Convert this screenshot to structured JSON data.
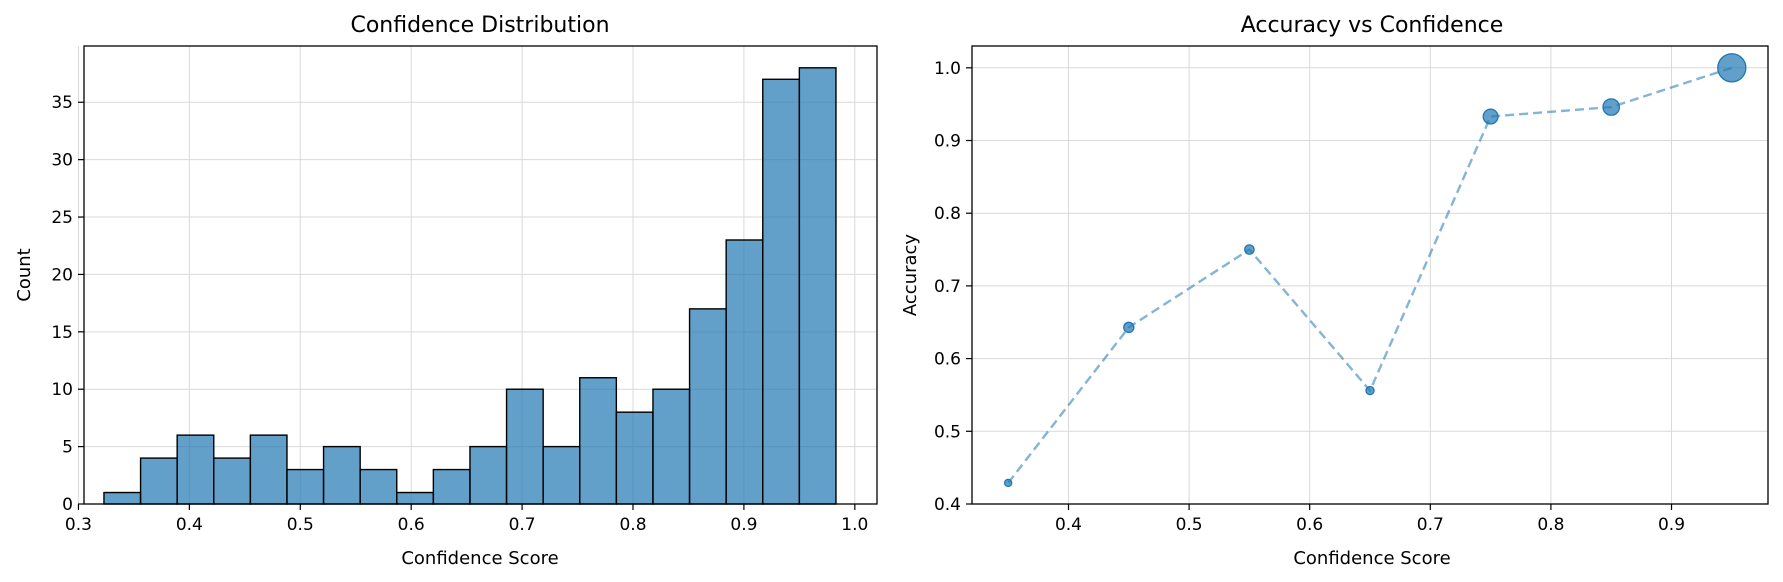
{
  "colors": {
    "bar_fill": "#1f77b4",
    "bar_edge": "#000000",
    "marker": "#1f77b4",
    "grid": "#d9d9d9"
  },
  "chart_data": [
    {
      "type": "bar",
      "title": "Confidence Distribution",
      "xlabel": "Confidence Score",
      "ylabel": "Count",
      "xlim": [
        0.305,
        1.02
      ],
      "ylim": [
        0,
        39.9
      ],
      "xticks": [
        0.3,
        0.4,
        0.5,
        0.6,
        0.7,
        0.8,
        0.9,
        1.0
      ],
      "xtick_labels": [
        "0.3",
        "0.4",
        "0.5",
        "0.6",
        "0.7",
        "0.8",
        "0.9",
        "1.0"
      ],
      "yticks": [
        0,
        5,
        10,
        15,
        20,
        25,
        30,
        35
      ],
      "ytick_labels": [
        "0",
        "5",
        "10",
        "15",
        "20",
        "25",
        "30",
        "35"
      ],
      "grid": true,
      "bin_edges": [
        0.323,
        0.356,
        0.389,
        0.422,
        0.455,
        0.488,
        0.521,
        0.554,
        0.587,
        0.62,
        0.653,
        0.686,
        0.719,
        0.752,
        0.785,
        0.818,
        0.851,
        0.884,
        0.917,
        0.95,
        0.983
      ],
      "counts": [
        1,
        4,
        6,
        4,
        6,
        3,
        5,
        3,
        1,
        3,
        5,
        10,
        5,
        11,
        8,
        10,
        17,
        23,
        37,
        38
      ]
    },
    {
      "type": "scatter",
      "title": "Accuracy vs Confidence",
      "xlabel": "Confidence Score",
      "ylabel": "Accuracy",
      "xlim": [
        0.32,
        0.98
      ],
      "ylim": [
        0.4,
        1.03
      ],
      "xticks": [
        0.4,
        0.5,
        0.6,
        0.7,
        0.8,
        0.9
      ],
      "xtick_labels": [
        "0.4",
        "0.5",
        "0.6",
        "0.7",
        "0.8",
        "0.9"
      ],
      "yticks": [
        0.4,
        0.5,
        0.6,
        0.7,
        0.8,
        0.9,
        1.0
      ],
      "ytick_labels": [
        "0.4",
        "0.5",
        "0.6",
        "0.7",
        "0.8",
        "0.9",
        "1.0"
      ],
      "grid": true,
      "line_style": "dashed",
      "x": [
        0.35,
        0.45,
        0.55,
        0.65,
        0.75,
        0.85,
        0.95
      ],
      "y": [
        0.429,
        0.643,
        0.75,
        0.556,
        0.933,
        0.946,
        1.0
      ],
      "counts": [
        7,
        14,
        12,
        9,
        30,
        37,
        108
      ]
    }
  ]
}
